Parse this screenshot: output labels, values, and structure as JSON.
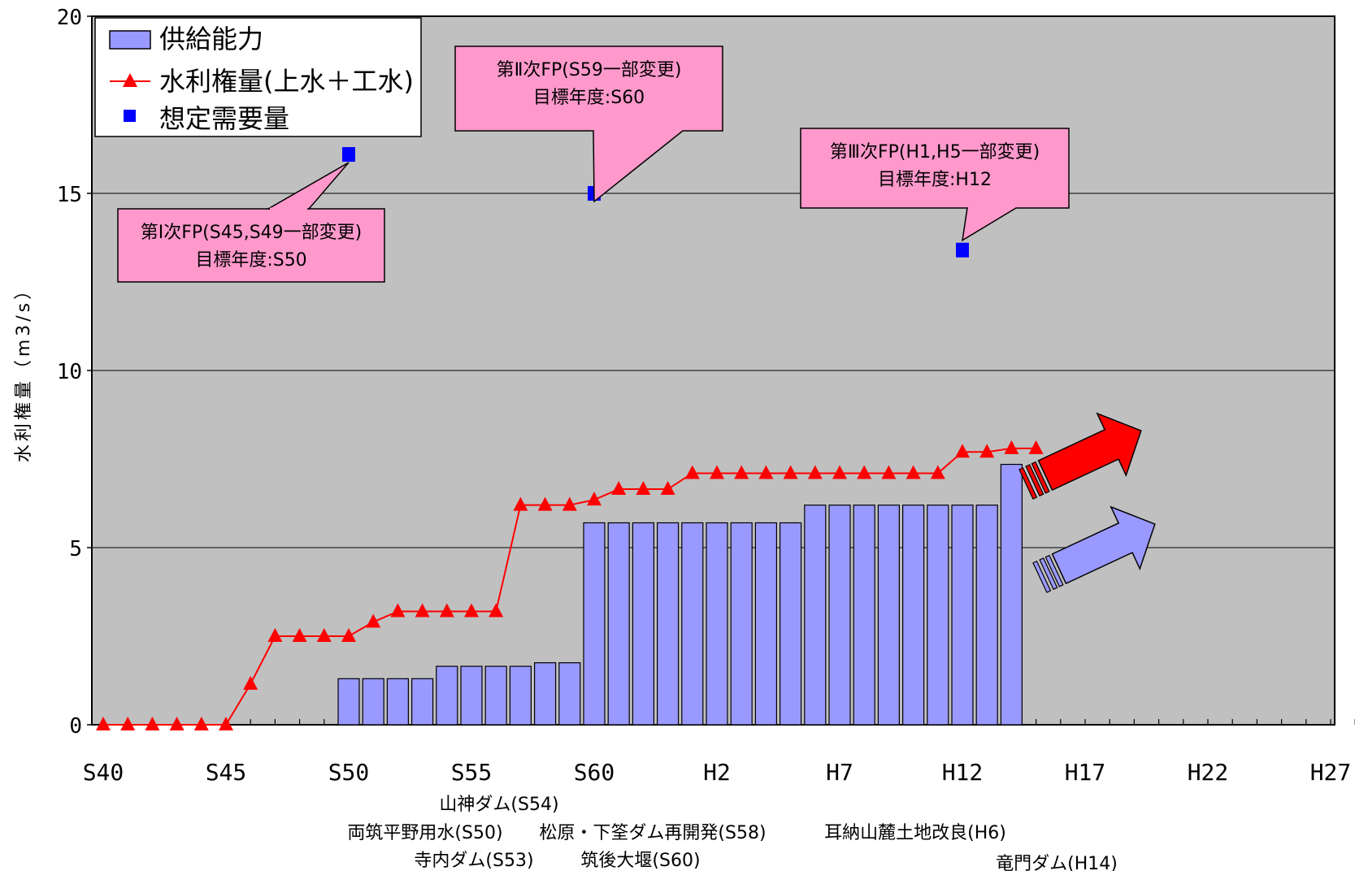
{
  "chart_data": {
    "type": "bar",
    "title": "",
    "xlabel": "",
    "ylabel": "水利権量（m3/s）",
    "ylim": [
      0,
      20
    ],
    "yticks": [
      "0",
      "5",
      "10",
      "15",
      "20"
    ],
    "xlim": [
      40,
      91
    ],
    "xticks": [
      {
        "x": 40,
        "label": "S40"
      },
      {
        "x": 45,
        "label": "S45"
      },
      {
        "x": 50,
        "label": "S50"
      },
      {
        "x": 55,
        "label": "S55"
      },
      {
        "x": 60,
        "label": "S60"
      },
      {
        "x": 65,
        "label": "H2"
      },
      {
        "x": 70,
        "label": "H7"
      },
      {
        "x": 75,
        "label": "H12"
      },
      {
        "x": 80,
        "label": "H17"
      },
      {
        "x": 85,
        "label": "H22"
      },
      {
        "x": 90,
        "label": "H27"
      }
    ],
    "grid": "horizontal",
    "legend_position": "top-left",
    "colors": {
      "bar": "#9999ff",
      "bar_edge": "#000000",
      "line": "#ff0000",
      "demand": "#0000ff",
      "plot_bg": "#c0c0c0",
      "callout": "#ff99cc",
      "arrow_supply": "#9999ff",
      "arrow_rights": "#ff0000"
    },
    "series": [
      {
        "name": "供給能力",
        "type": "bar",
        "x": [
          50,
          51,
          52,
          53,
          54,
          55,
          56,
          57,
          58,
          59,
          60,
          61,
          62,
          63,
          64,
          65,
          66,
          67,
          68,
          69,
          70,
          71,
          72,
          73,
          74,
          75,
          76,
          77
        ],
        "values": [
          1.3,
          1.3,
          1.3,
          1.3,
          1.65,
          1.65,
          1.65,
          1.65,
          1.75,
          1.75,
          5.7,
          5.7,
          5.7,
          5.7,
          5.7,
          5.7,
          5.7,
          5.7,
          5.7,
          6.2,
          6.2,
          6.2,
          6.2,
          6.2,
          6.2,
          6.2,
          6.2,
          7.35
        ]
      },
      {
        "name": "水利権量(上水＋工水)",
        "type": "line",
        "marker": "triangle",
        "x": [
          40,
          41,
          42,
          43,
          44,
          45,
          46,
          47,
          48,
          49,
          50,
          51,
          52,
          53,
          54,
          55,
          56,
          57,
          58,
          59,
          60,
          61,
          62,
          63,
          64,
          65,
          66,
          67,
          68,
          69,
          70,
          71,
          72,
          73,
          74,
          75,
          76,
          77,
          78
        ],
        "values": [
          0,
          0,
          0,
          0,
          0,
          0,
          1.15,
          2.5,
          2.5,
          2.5,
          2.5,
          2.9,
          3.2,
          3.2,
          3.2,
          3.2,
          3.2,
          6.2,
          6.2,
          6.2,
          6.35,
          6.65,
          6.65,
          6.65,
          7.1,
          7.1,
          7.1,
          7.1,
          7.1,
          7.1,
          7.1,
          7.1,
          7.1,
          7.1,
          7.1,
          7.7,
          7.7,
          7.8,
          7.8
        ]
      },
      {
        "name": "想定需要量",
        "type": "scatter",
        "marker": "square",
        "x": [
          50,
          60,
          75
        ],
        "values": [
          16.1,
          15.0,
          13.4
        ]
      }
    ],
    "annotations": [
      {
        "target": 0,
        "lines": [
          "第Ⅰ次FP(S45,S49一部変更)",
          "目標年度:S50"
        ]
      },
      {
        "target": 1,
        "lines": [
          "第Ⅱ次FP(S59一部変更)",
          "目標年度:S60"
        ]
      },
      {
        "target": 2,
        "lines": [
          "第Ⅲ次FP(H1,H5一部変更)",
          "目標年度:H12"
        ]
      }
    ],
    "projects": [
      {
        "label": "山神ダム(S54)"
      },
      {
        "label": "両筑平野用水(S50)"
      },
      {
        "label": "寺内ダム(S53)"
      },
      {
        "label": "松原・下筌ダム再開発(S58)"
      },
      {
        "label": "筑後大堰(S60)"
      },
      {
        "label": "耳納山麓土地改良(H6)"
      },
      {
        "label": "竜門ダム(H14)"
      }
    ]
  }
}
